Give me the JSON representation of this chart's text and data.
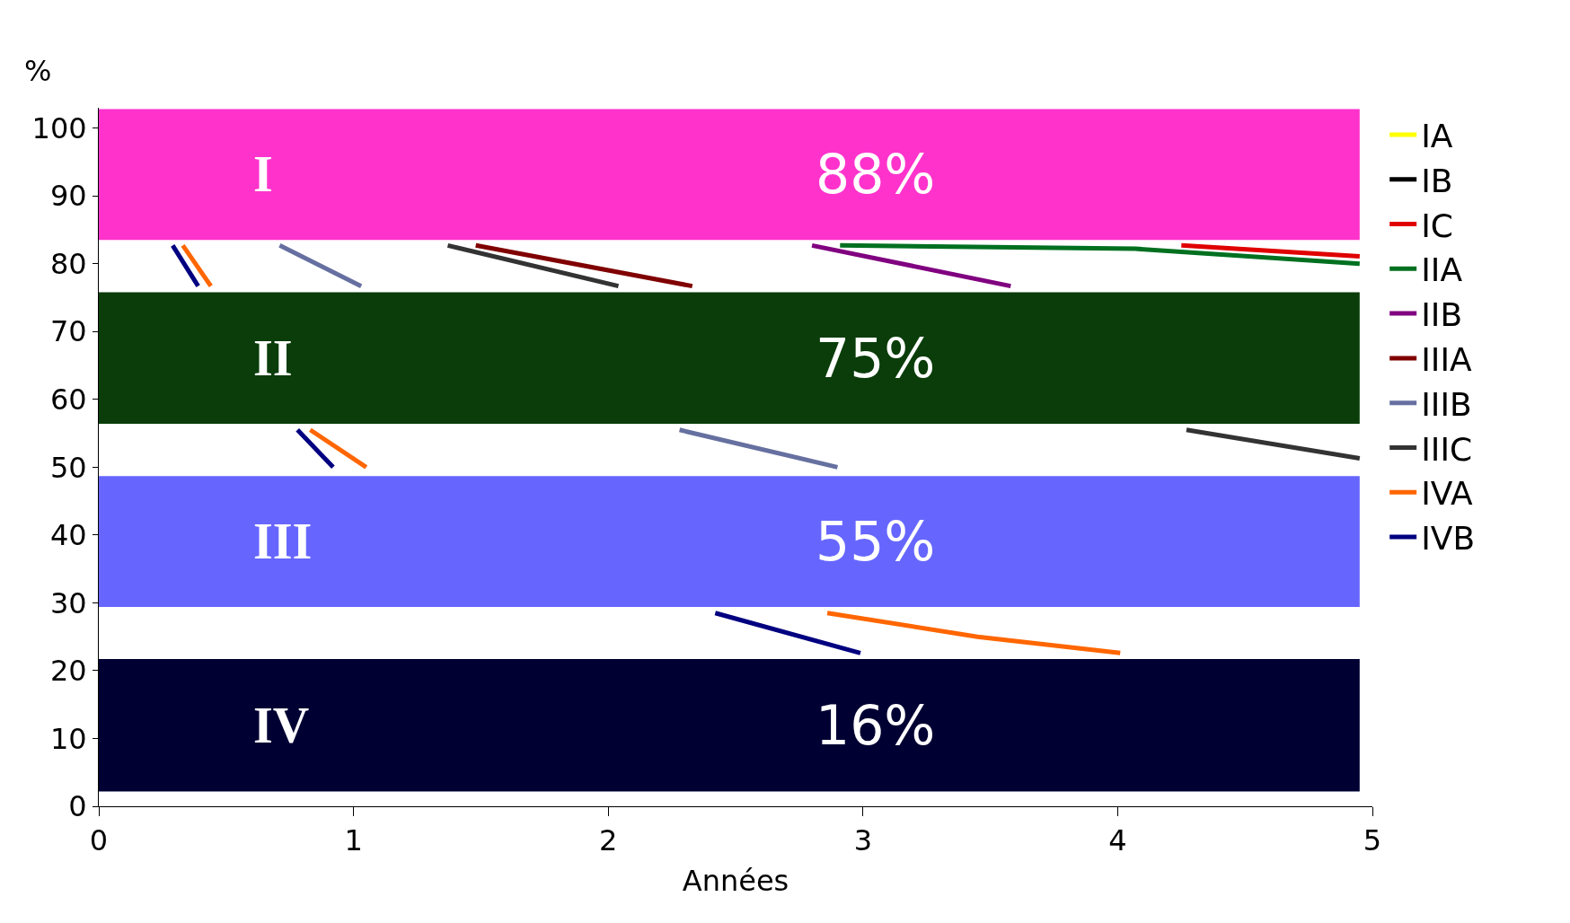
{
  "chart_data": {
    "type": "line",
    "xlabel": "Années",
    "ylabel": "%",
    "xlim": [
      0,
      5
    ],
    "ylim": [
      0,
      103
    ],
    "xticks": [
      0,
      1,
      2,
      3,
      4,
      5
    ],
    "yticks": [
      0,
      10,
      20,
      30,
      40,
      50,
      60,
      70,
      80,
      90,
      100
    ],
    "grid": false,
    "legend": "top right",
    "line_style": "solid",
    "marker": "none",
    "series": [
      {
        "name": "IA",
        "color": "#ffff00"
      },
      {
        "name": "IB",
        "color": "#000000"
      },
      {
        "name": "IC",
        "color": "#e00000",
        "x": [
          4.25,
          4.95
        ],
        "values": [
          82.7,
          81.1
        ]
      },
      {
        "name": "IIA",
        "color": "#007020",
        "x": [
          2.91,
          4.07,
          4.95
        ],
        "values": [
          82.7,
          82.2,
          80.0
        ]
      },
      {
        "name": "IIB",
        "color": "#800080",
        "x": [
          2.8,
          3.58
        ],
        "values": [
          82.7,
          76.7
        ]
      },
      {
        "name": "IIIA",
        "color": "#800000",
        "x": [
          1.48,
          2.33
        ],
        "values": [
          82.7,
          76.7
        ]
      },
      {
        "name": "IIIB",
        "color": "#6670a0",
        "x": [
          0.71,
          1.03,
          1.1,
          2.28,
          2.9
        ],
        "values": [
          82.7,
          76.7,
          null,
          55.5,
          50.0
        ]
      },
      {
        "name": "IIIC",
        "color": "#333333",
        "x": [
          1.37,
          2.04,
          2.1,
          4.27,
          4.95
        ],
        "values": [
          82.7,
          76.7,
          null,
          55.5,
          51.3
        ]
      },
      {
        "name": "IVA",
        "color": "#ff6600",
        "x": [
          0.33,
          0.44,
          0.5,
          0.83,
          1.05,
          1.1,
          2.86,
          3.45,
          4.01
        ],
        "values": [
          82.7,
          76.7,
          null,
          55.5,
          50.0,
          null,
          28.5,
          25.0,
          22.6
        ]
      },
      {
        "name": "IVB",
        "color": "#000080",
        "x": [
          0.29,
          0.39,
          0.5,
          0.78,
          0.92,
          1.0,
          2.42,
          2.99
        ],
        "values": [
          82.7,
          76.7,
          null,
          55.5,
          50.0,
          null,
          28.5,
          22.6
        ]
      }
    ],
    "bands": [
      {
        "axis": "y",
        "from": 83.5,
        "to": 102.8,
        "label": "I",
        "color": "#ff33cc"
      },
      {
        "axis": "y",
        "from": 56.4,
        "to": 75.8,
        "label": "II",
        "color": "#0a3d0a"
      },
      {
        "axis": "y",
        "from": 29.4,
        "to": 48.7,
        "label": "III",
        "color": "#6666ff"
      },
      {
        "axis": "y",
        "from": 2.2,
        "to": 21.7,
        "label": "IV",
        "color": "#000033"
      }
    ],
    "annotations": [
      "88%",
      "75%",
      "55%",
      "16%"
    ]
  }
}
